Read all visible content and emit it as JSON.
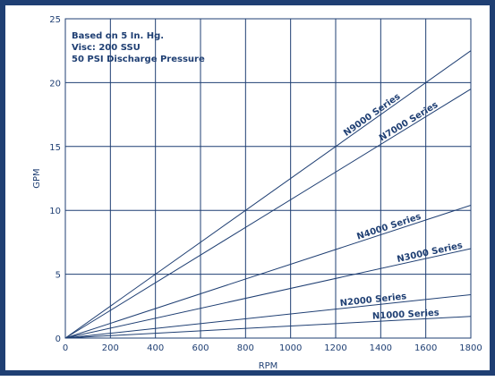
{
  "chart_data": {
    "type": "line",
    "xlabel": "RPM",
    "ylabel": "GPM",
    "xlim": [
      0,
      1800
    ],
    "ylim": [
      0,
      25
    ],
    "x_ticks": [
      0,
      200,
      400,
      600,
      800,
      1000,
      1200,
      1400,
      1600,
      1800
    ],
    "y_ticks": [
      0,
      5,
      10,
      15,
      20,
      25
    ],
    "grid": true,
    "annotations": [
      "Based on 5 In. Hg.",
      "Visc: 200 SSU",
      "50 PSI Discharge Pressure"
    ],
    "series": [
      {
        "name": "N9000 Series",
        "x": [
          0,
          1800
        ],
        "y": [
          0,
          22.5
        ]
      },
      {
        "name": "N7000 Series",
        "x": [
          0,
          1800
        ],
        "y": [
          0,
          19.5
        ]
      },
      {
        "name": "N4000 Series",
        "x": [
          0,
          1800
        ],
        "y": [
          0,
          10.4
        ]
      },
      {
        "name": "N3000 Series",
        "x": [
          0,
          1800
        ],
        "y": [
          0,
          7.0
        ]
      },
      {
        "name": "N2000 Series",
        "x": [
          0,
          1800
        ],
        "y": [
          0,
          3.4
        ]
      },
      {
        "name": "N1000 Series",
        "x": [
          0,
          1800
        ],
        "y": [
          0,
          1.7
        ]
      }
    ],
    "line_color": "#1f3f73"
  }
}
